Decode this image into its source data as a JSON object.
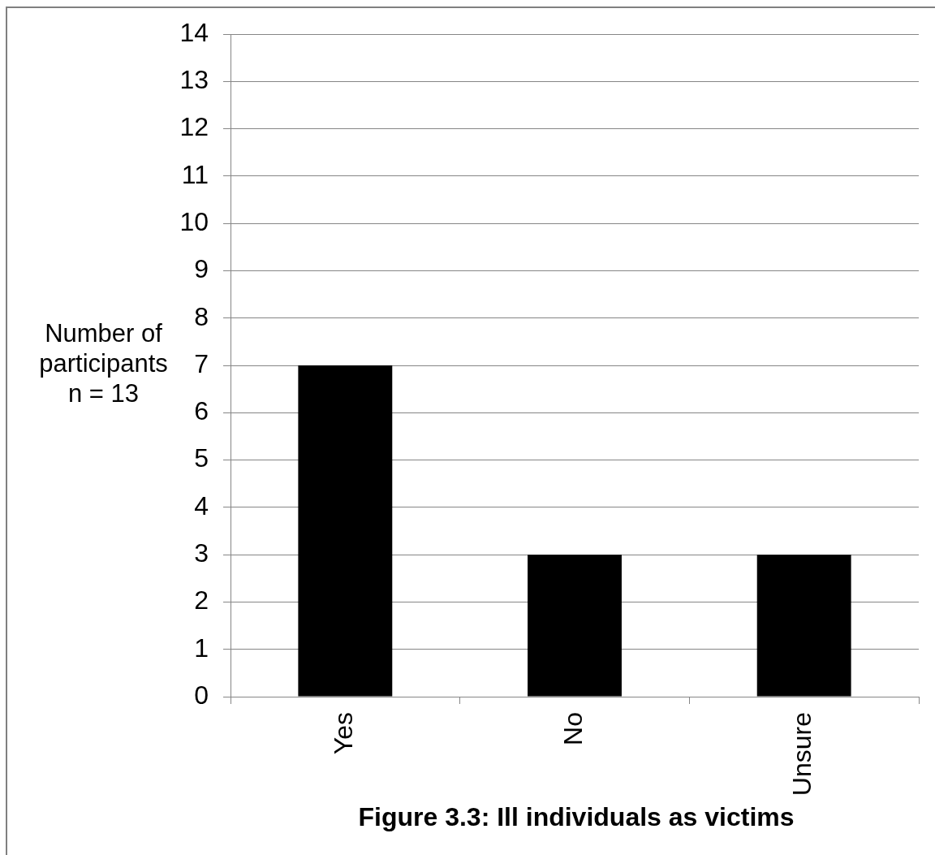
{
  "chart_data": {
    "type": "bar",
    "title": "Figure 3.3: Ill individuals as victims",
    "ylabel": "Number of participants n = 13",
    "categories": [
      "Yes",
      "No",
      "Unsure"
    ],
    "values": [
      7,
      3,
      3
    ],
    "color": "#000000",
    "ylim": [
      0,
      14
    ],
    "yticks": [
      0,
      1,
      2,
      3,
      4,
      5,
      6,
      7,
      8,
      9,
      10,
      11,
      12,
      13,
      14
    ],
    "grid": "y"
  }
}
